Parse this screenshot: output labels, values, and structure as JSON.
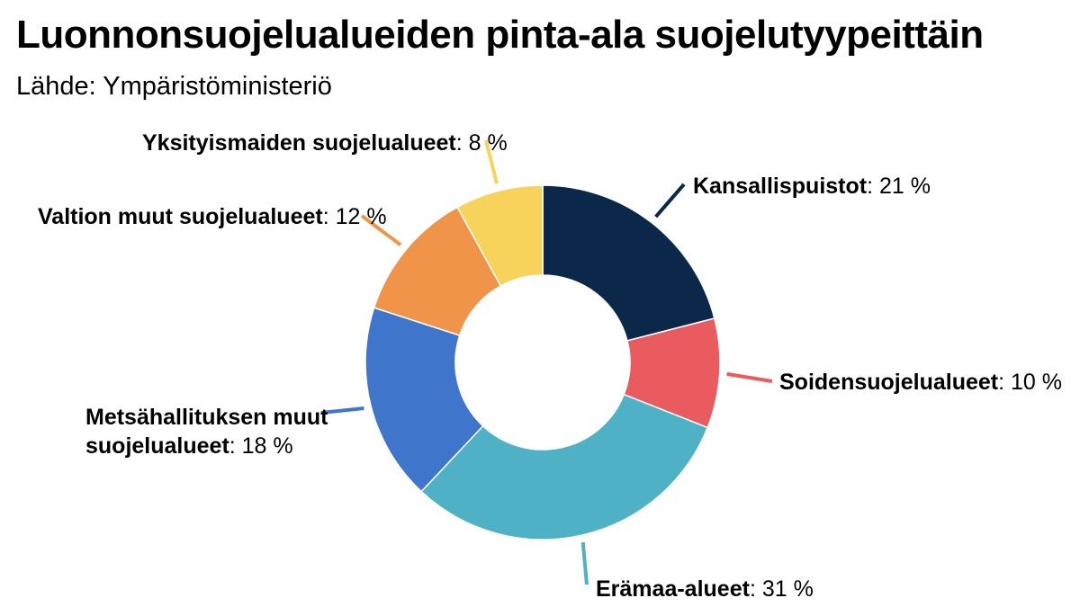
{
  "title": "Luonnonsuojelualueiden pinta-ala suojelutyypeittäin",
  "subtitle": "Lähde: Ympäristöministeriö",
  "chart_data": {
    "type": "pie",
    "title": "Luonnonsuojelualueiden pinta-ala suojelutyypeittäin",
    "subtitle": "Lähde: Ympäristöministeriö",
    "unit": "%",
    "donut": true,
    "start_angle": "12 o'clock",
    "direction": "clockwise",
    "slices": [
      {
        "name": "Kansallispuistot",
        "value": 21,
        "value_label": "21 %",
        "color": "#0b284b"
      },
      {
        "name": "Soidensuojelualueet",
        "value": 10,
        "value_label": "10 %",
        "color": "#ea5b60"
      },
      {
        "name": "Erämaa-alueet",
        "value": 31,
        "value_label": "31 %",
        "color": "#4eb1c5"
      },
      {
        "name": "Metsähallituksen muut suojelualueet",
        "name_lines": [
          "Metsähallituksen muut",
          "suojelualueet"
        ],
        "value": 18,
        "value_label": "18 %",
        "color": "#3f76cb"
      },
      {
        "name": "Valtion muut suojelualueet",
        "value": 12,
        "value_label": "12 %",
        "color": "#f0944a"
      },
      {
        "name": "Yksityismaiden suojelualueet",
        "value": 8,
        "value_label": "8 %",
        "color": "#f8d35c"
      }
    ]
  }
}
